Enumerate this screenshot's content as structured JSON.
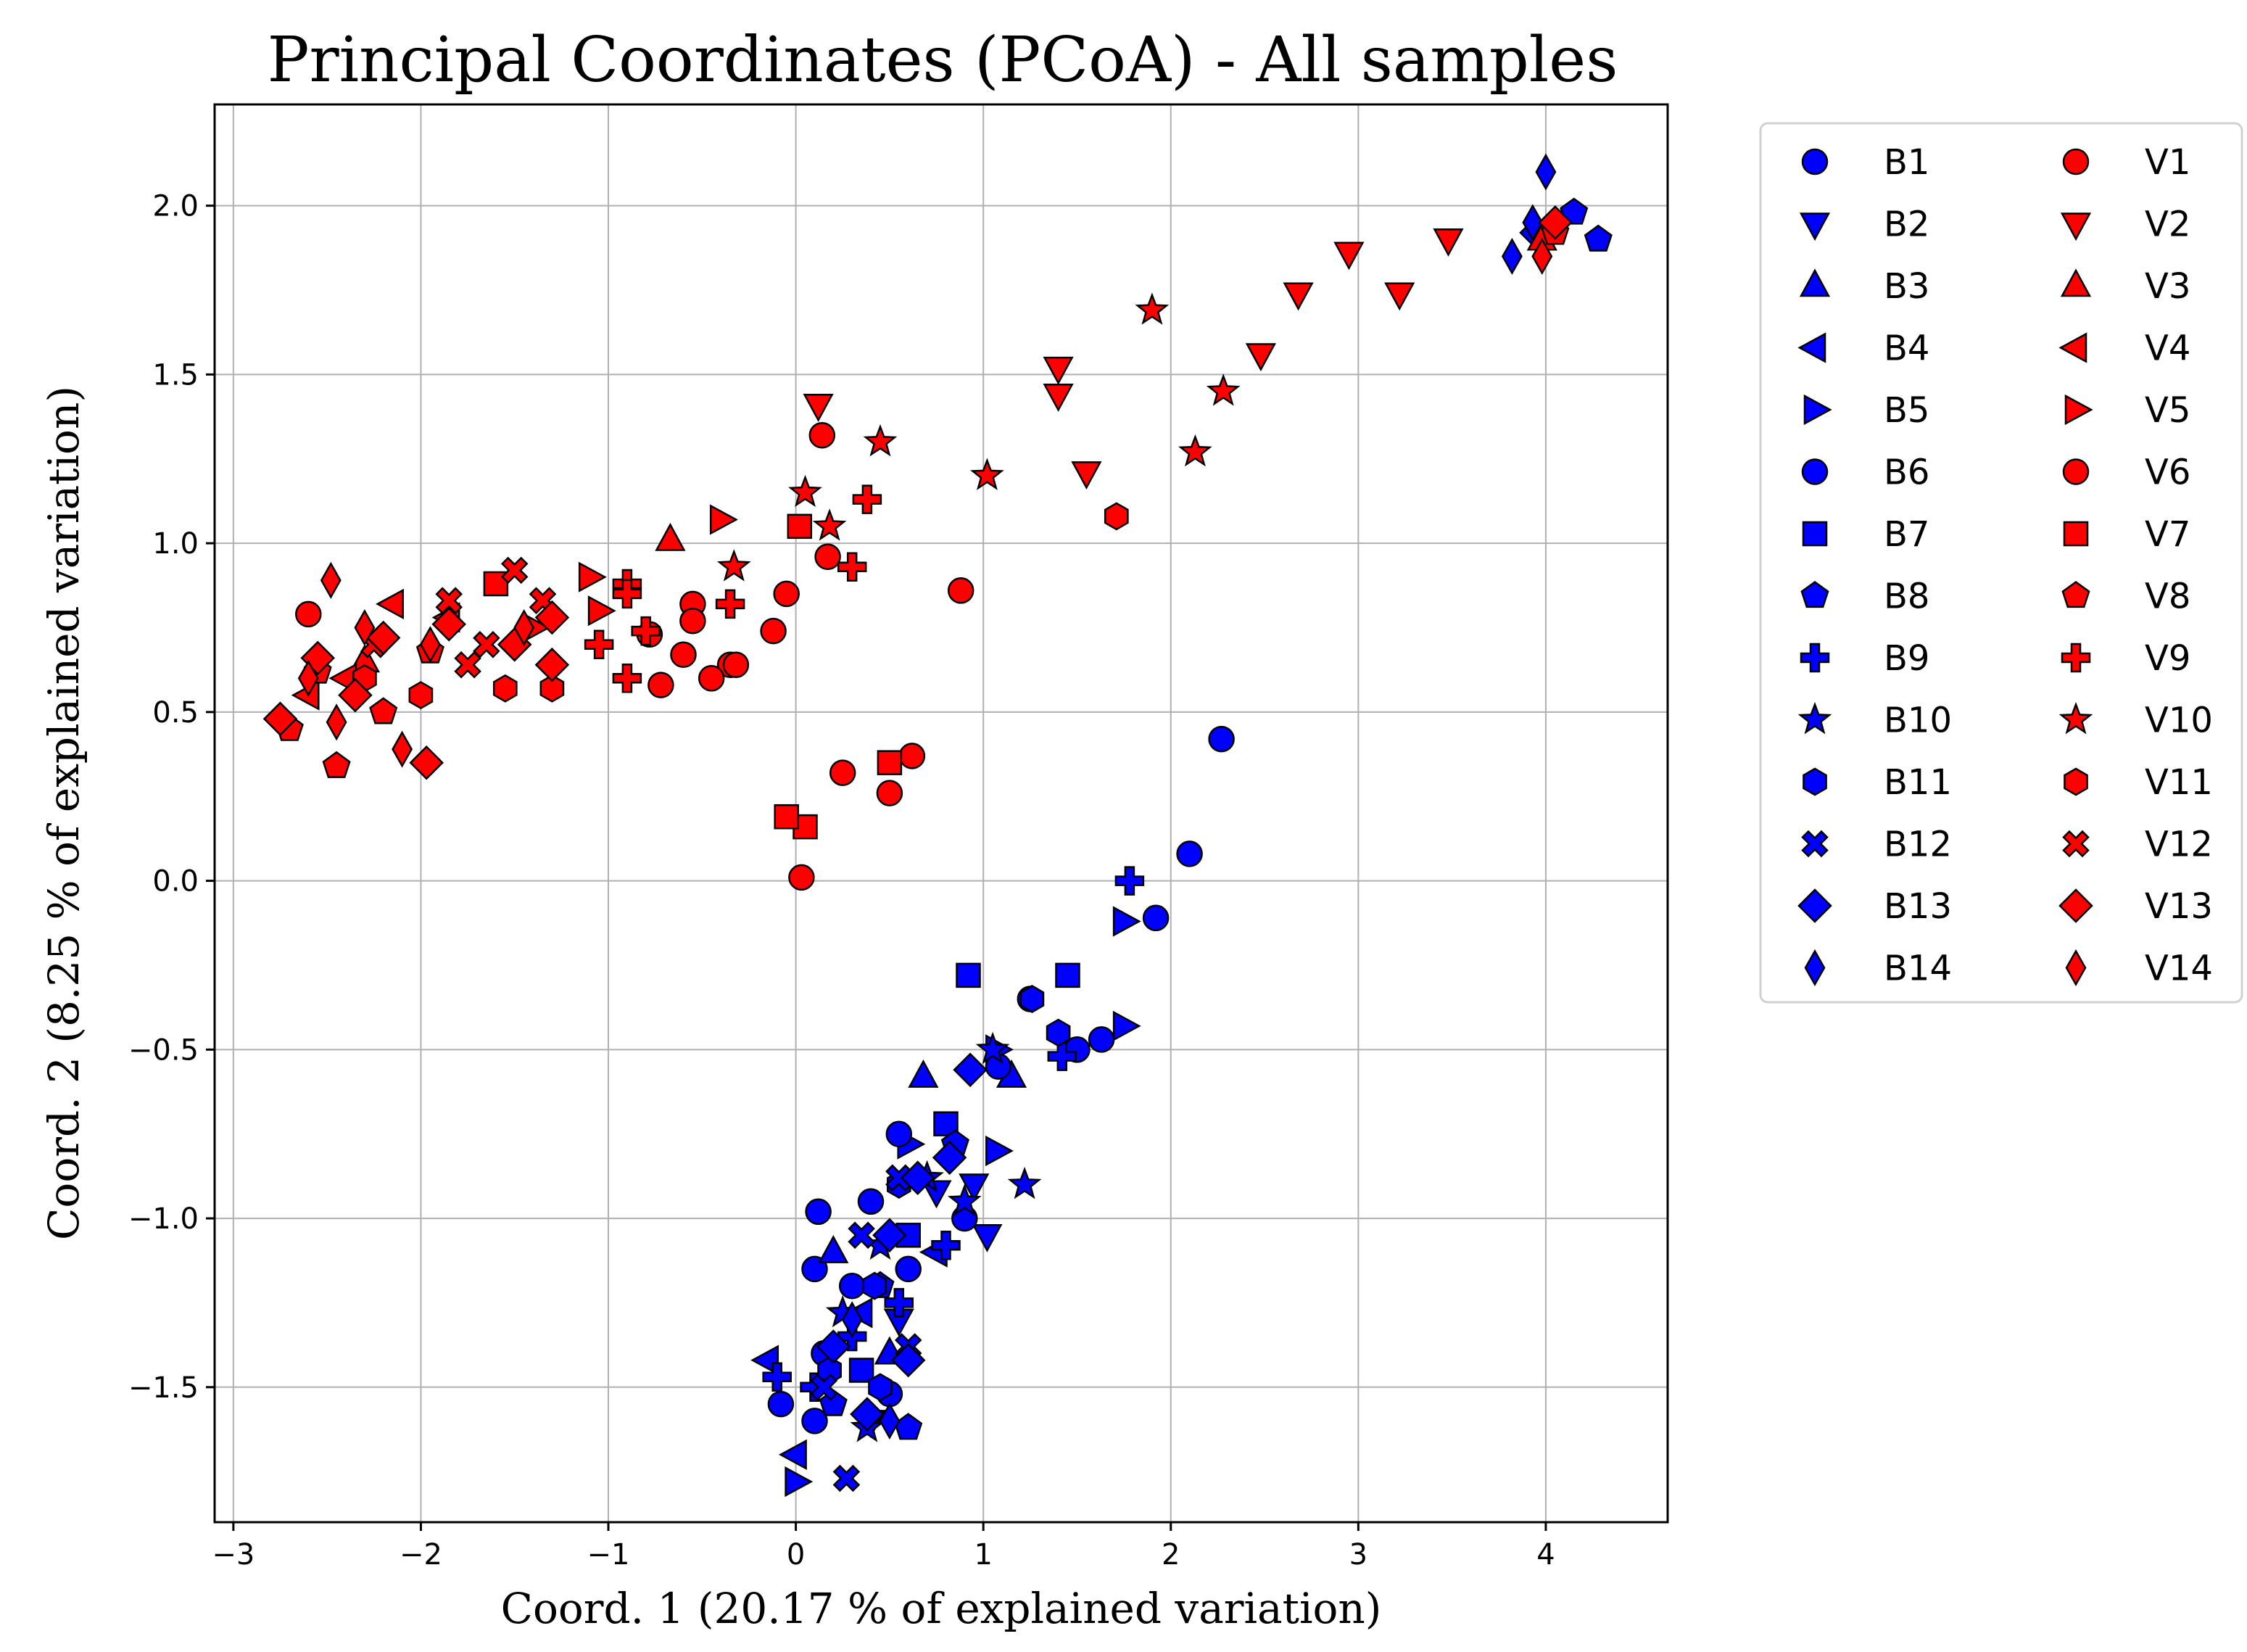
{
  "chart_data": {
    "type": "scatter",
    "title": "Principal Coordinates (PCoA) - All samples",
    "xlabel": "Coord. 1 (20.17 % of explained variation)",
    "ylabel": "Coord. 2 (8.25 % of explained variation)",
    "xlim": [
      -3.1,
      4.65
    ],
    "ylim": [
      -1.9,
      2.3
    ],
    "xticks": [
      -3,
      -2,
      -1,
      0,
      1,
      2,
      3,
      4
    ],
    "xtick_labels": [
      "−3",
      "−2",
      "−1",
      "0",
      "1",
      "2",
      "3",
      "4"
    ],
    "yticks": [
      -1.5,
      -1.0,
      -0.5,
      0.0,
      0.5,
      1.0,
      1.5,
      2.0
    ],
    "ytick_labels": [
      "−1.5",
      "−1.0",
      "−0.5",
      "0.0",
      "0.5",
      "1.0",
      "1.5",
      "2.0"
    ],
    "grid": true,
    "legend_position": "outside-right",
    "colors": {
      "B": "#0000ff",
      "V": "#ff0000"
    },
    "series": [
      {
        "name": "B1",
        "color": "#0000ff",
        "marker": "circle",
        "points": [
          [
            2.27,
            0.42
          ],
          [
            2.1,
            0.08
          ],
          [
            1.63,
            -0.47
          ],
          [
            0.12,
            -0.98
          ],
          [
            0.1,
            -1.15
          ]
        ]
      },
      {
        "name": "B2",
        "color": "#0000ff",
        "marker": "triangle-down",
        "points": [
          [
            1.02,
            -1.05
          ],
          [
            0.95,
            -0.9
          ],
          [
            0.75,
            -0.92
          ],
          [
            0.55,
            -1.3
          ],
          [
            0.4,
            -1.6
          ]
        ]
      },
      {
        "name": "B3",
        "color": "#0000ff",
        "marker": "triangle-up",
        "points": [
          [
            0.68,
            -0.58
          ],
          [
            1.15,
            -0.58
          ],
          [
            0.2,
            -1.1
          ],
          [
            0.5,
            -1.4
          ]
        ]
      },
      {
        "name": "B4",
        "color": "#0000ff",
        "marker": "triangle-left",
        "points": [
          [
            -0.15,
            -1.42
          ],
          [
            0.0,
            -1.7
          ],
          [
            0.35,
            -1.28
          ],
          [
            0.75,
            -1.1
          ]
        ]
      },
      {
        "name": "B5",
        "color": "#0000ff",
        "marker": "triangle-right",
        "points": [
          [
            1.75,
            -0.12
          ],
          [
            1.75,
            -0.43
          ],
          [
            1.07,
            -0.5
          ],
          [
            1.07,
            -0.8
          ],
          [
            0.0,
            -1.78
          ],
          [
            0.6,
            -0.78
          ]
        ]
      },
      {
        "name": "B6",
        "color": "#0000ff",
        "marker": "circle",
        "points": [
          [
            1.92,
            -0.11
          ],
          [
            1.5,
            -0.5
          ],
          [
            1.25,
            -0.35
          ],
          [
            1.08,
            -0.55
          ],
          [
            0.55,
            -0.75
          ],
          [
            0.4,
            -0.95
          ],
          [
            0.3,
            -1.2
          ],
          [
            0.15,
            -1.4
          ],
          [
            -0.08,
            -1.55
          ],
          [
            0.1,
            -1.6
          ],
          [
            0.5,
            -1.52
          ],
          [
            0.6,
            -1.15
          ],
          [
            0.9,
            -1.0
          ]
        ]
      },
      {
        "name": "B7",
        "color": "#0000ff",
        "marker": "square",
        "points": [
          [
            1.45,
            -0.28
          ],
          [
            0.92,
            -0.28
          ],
          [
            0.8,
            -0.72
          ],
          [
            0.6,
            -1.05
          ],
          [
            0.35,
            -1.45
          ]
        ]
      },
      {
        "name": "B8",
        "color": "#0000ff",
        "marker": "pentagon",
        "points": [
          [
            4.28,
            1.9
          ],
          [
            4.15,
            1.98
          ],
          [
            0.85,
            -0.78
          ],
          [
            0.45,
            -1.2
          ],
          [
            0.2,
            -1.55
          ],
          [
            0.6,
            -1.62
          ]
        ]
      },
      {
        "name": "B9",
        "color": "#0000ff",
        "marker": "plus",
        "points": [
          [
            1.78,
            0.0
          ],
          [
            1.42,
            -0.52
          ],
          [
            0.8,
            -1.08
          ],
          [
            0.55,
            -1.25
          ],
          [
            0.3,
            -1.35
          ],
          [
            -0.1,
            -1.47
          ],
          [
            0.1,
            -1.5
          ]
        ]
      },
      {
        "name": "B10",
        "color": "#0000ff",
        "marker": "star",
        "points": [
          [
            1.22,
            -0.9
          ],
          [
            1.05,
            -0.5
          ],
          [
            0.9,
            -0.95
          ],
          [
            0.7,
            -0.88
          ],
          [
            0.45,
            -1.08
          ],
          [
            0.25,
            -1.28
          ],
          [
            0.38,
            -1.62
          ]
        ]
      },
      {
        "name": "B11",
        "color": "#0000ff",
        "marker": "hexagon",
        "points": [
          [
            1.26,
            -0.35
          ],
          [
            1.4,
            -0.45
          ],
          [
            0.55,
            -0.9
          ],
          [
            0.42,
            -1.2
          ],
          [
            0.18,
            -1.45
          ],
          [
            0.45,
            -1.5
          ]
        ]
      },
      {
        "name": "B12",
        "color": "#0000ff",
        "marker": "x",
        "points": [
          [
            0.27,
            -1.77
          ],
          [
            0.6,
            -1.38
          ],
          [
            0.35,
            -1.05
          ],
          [
            0.55,
            -0.88
          ],
          [
            0.15,
            -1.5
          ]
        ]
      },
      {
        "name": "B13",
        "color": "#0000ff",
        "marker": "diamond",
        "points": [
          [
            0.93,
            -0.56
          ],
          [
            0.82,
            -0.82
          ],
          [
            0.65,
            -0.88
          ],
          [
            0.5,
            -1.05
          ],
          [
            0.6,
            -1.42
          ],
          [
            0.38,
            -1.58
          ],
          [
            0.2,
            -1.38
          ],
          [
            3.95,
            1.92
          ]
        ]
      },
      {
        "name": "B14",
        "color": "#0000ff",
        "marker": "thin-diamond",
        "points": [
          [
            4.0,
            2.1
          ],
          [
            3.93,
            1.95
          ],
          [
            3.82,
            1.85
          ],
          [
            0.3,
            -1.3
          ],
          [
            0.5,
            -1.6
          ]
        ]
      },
      {
        "name": "V1",
        "color": "#ff0000",
        "marker": "circle",
        "points": [
          [
            0.14,
            1.32
          ],
          [
            0.88,
            0.86
          ],
          [
            0.17,
            0.96
          ],
          [
            0.62,
            0.37
          ],
          [
            0.25,
            0.32
          ],
          [
            0.5,
            0.26
          ],
          [
            0.03,
            0.01
          ],
          [
            -0.05,
            0.85
          ],
          [
            -0.35,
            0.64
          ],
          [
            -0.6,
            0.67
          ]
        ]
      },
      {
        "name": "V2",
        "color": "#ff0000",
        "marker": "triangle-down",
        "points": [
          [
            3.48,
            1.9
          ],
          [
            2.95,
            1.86
          ],
          [
            3.22,
            1.74
          ],
          [
            2.68,
            1.74
          ],
          [
            2.48,
            1.56
          ],
          [
            1.4,
            1.52
          ],
          [
            1.4,
            1.44
          ],
          [
            1.55,
            1.21
          ],
          [
            0.12,
            1.41
          ]
        ]
      },
      {
        "name": "V3",
        "color": "#ff0000",
        "marker": "triangle-up",
        "points": [
          [
            -0.67,
            1.01
          ],
          [
            3.98,
            1.9
          ],
          [
            -2.3,
            0.65
          ]
        ]
      },
      {
        "name": "V4",
        "color": "#ff0000",
        "marker": "triangle-left",
        "points": [
          [
            -2.15,
            0.82
          ],
          [
            -1.85,
            0.78
          ],
          [
            -2.6,
            0.55
          ],
          [
            -2.4,
            0.6
          ]
        ]
      },
      {
        "name": "V5",
        "color": "#ff0000",
        "marker": "triangle-right",
        "points": [
          [
            -0.4,
            1.07
          ],
          [
            -1.1,
            0.9
          ],
          [
            -1.05,
            0.8
          ],
          [
            -1.4,
            0.75
          ]
        ]
      },
      {
        "name": "V6",
        "color": "#ff0000",
        "marker": "circle",
        "points": [
          [
            -0.32,
            0.64
          ],
          [
            -0.45,
            0.6
          ],
          [
            -0.12,
            0.74
          ],
          [
            -0.55,
            0.82
          ],
          [
            -0.55,
            0.77
          ],
          [
            -0.72,
            0.58
          ],
          [
            -0.78,
            0.73
          ],
          [
            -2.6,
            0.79
          ]
        ]
      },
      {
        "name": "V7",
        "color": "#ff0000",
        "marker": "square",
        "points": [
          [
            0.02,
            1.05
          ],
          [
            0.05,
            0.16
          ],
          [
            -0.05,
            0.19
          ],
          [
            0.5,
            0.35
          ],
          [
            -1.6,
            0.88
          ]
        ]
      },
      {
        "name": "V8",
        "color": "#ff0000",
        "marker": "pentagon",
        "points": [
          [
            -2.45,
            0.34
          ],
          [
            -2.7,
            0.45
          ],
          [
            -2.55,
            0.62
          ],
          [
            -1.95,
            0.68
          ],
          [
            -2.2,
            0.5
          ],
          [
            4.05,
            1.92
          ]
        ]
      },
      {
        "name": "V9",
        "color": "#ff0000",
        "marker": "plus",
        "points": [
          [
            0.38,
            1.13
          ],
          [
            0.3,
            0.93
          ],
          [
            -0.35,
            0.82
          ],
          [
            -0.9,
            0.88
          ],
          [
            -0.9,
            0.85
          ],
          [
            -0.8,
            0.74
          ],
          [
            -1.05,
            0.7
          ],
          [
            -0.9,
            0.6
          ]
        ]
      },
      {
        "name": "V10",
        "color": "#ff0000",
        "marker": "star",
        "points": [
          [
            1.9,
            1.69
          ],
          [
            2.28,
            1.45
          ],
          [
            2.13,
            1.27
          ],
          [
            1.02,
            1.2
          ],
          [
            0.45,
            1.3
          ],
          [
            0.05,
            1.15
          ],
          [
            0.18,
            1.05
          ],
          [
            -0.33,
            0.93
          ]
        ]
      },
      {
        "name": "V11",
        "color": "#ff0000",
        "marker": "hexagon",
        "points": [
          [
            1.71,
            1.08
          ],
          [
            -1.55,
            0.57
          ],
          [
            -1.3,
            0.57
          ],
          [
            -2.0,
            0.55
          ],
          [
            -2.3,
            0.6
          ]
        ]
      },
      {
        "name": "V12",
        "color": "#ff0000",
        "marker": "x",
        "points": [
          [
            -1.5,
            0.92
          ],
          [
            -1.35,
            0.83
          ],
          [
            -1.85,
            0.83
          ],
          [
            -1.65,
            0.7
          ],
          [
            -1.75,
            0.64
          ],
          [
            -2.25,
            0.7
          ]
        ]
      },
      {
        "name": "V13",
        "color": "#ff0000",
        "marker": "diamond",
        "points": [
          [
            -1.97,
            0.35
          ],
          [
            -1.3,
            0.64
          ],
          [
            -1.3,
            0.78
          ],
          [
            -1.85,
            0.76
          ],
          [
            -2.2,
            0.72
          ],
          [
            -2.35,
            0.55
          ],
          [
            -2.55,
            0.66
          ],
          [
            -2.75,
            0.48
          ],
          [
            -1.5,
            0.7
          ],
          [
            4.05,
            1.95
          ]
        ]
      },
      {
        "name": "V14",
        "color": "#ff0000",
        "marker": "thin-diamond",
        "points": [
          [
            -2.48,
            0.89
          ],
          [
            -2.1,
            0.39
          ],
          [
            -2.45,
            0.47
          ],
          [
            -2.6,
            0.6
          ],
          [
            -2.3,
            0.75
          ],
          [
            -1.95,
            0.7
          ],
          [
            -1.45,
            0.75
          ],
          [
            3.98,
            1.85
          ]
        ]
      }
    ]
  }
}
